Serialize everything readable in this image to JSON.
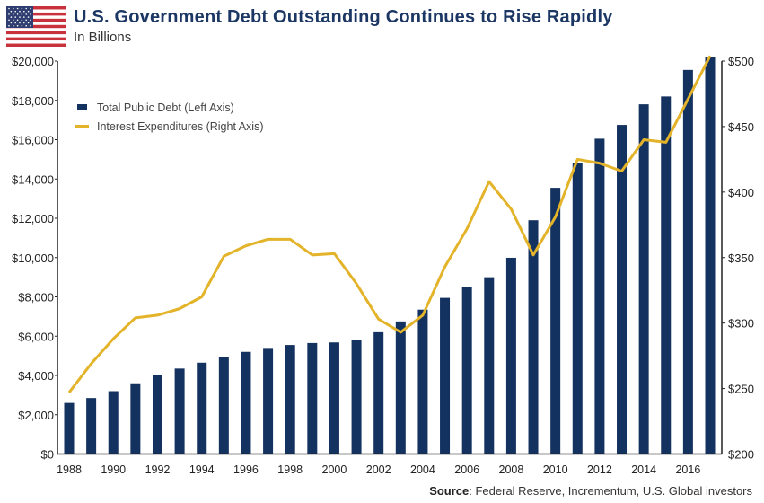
{
  "header": {
    "title": "U.S. Government Debt Outstanding Continues to Rise Rapidly",
    "subtitle": "In Billions",
    "icon": "us-flag-icon"
  },
  "source": {
    "label": "Source",
    "text": ": Federal Reserve, Incrementum, U.S. Global investors"
  },
  "chart_data": {
    "type": "bar+line",
    "title": "U.S. Government Debt Outstanding Continues to Rise Rapidly",
    "subtitle": "In Billions",
    "categories": [
      1988,
      1989,
      1990,
      1991,
      1992,
      1993,
      1994,
      1995,
      1996,
      1997,
      1998,
      1999,
      2000,
      2001,
      2002,
      2003,
      2004,
      2005,
      2006,
      2007,
      2008,
      2009,
      2010,
      2011,
      2012,
      2013,
      2014,
      2015,
      2016,
      2017
    ],
    "x_tick_labels": [
      "1988",
      "1990",
      "1992",
      "1994",
      "1996",
      "1998",
      "2000",
      "2002",
      "2004",
      "2006",
      "2008",
      "2010",
      "2012",
      "2014",
      "2016"
    ],
    "left_axis": {
      "range": [
        0,
        20000
      ],
      "tick_labels": [
        "$0",
        "$2,000",
        "$4,000",
        "$6,000",
        "$8,000",
        "$10,000",
        "$12,000",
        "$14,000",
        "$16,000",
        "$18,000",
        "$20,000"
      ]
    },
    "right_axis": {
      "range": [
        200,
        500
      ],
      "tick_labels": [
        "$200",
        "$250",
        "$300",
        "$350",
        "$400",
        "$450",
        "$500"
      ]
    },
    "grid": false,
    "legend_placement": "top-left",
    "series": [
      {
        "name": "Total Public Debt (Left Axis)",
        "type": "bar",
        "axis": "left",
        "color": "#14325f",
        "values": [
          2600,
          2850,
          3200,
          3600,
          4000,
          4350,
          4650,
          4950,
          5200,
          5400,
          5550,
          5650,
          5680,
          5800,
          6200,
          6750,
          7350,
          7950,
          8500,
          9000,
          9990,
          11900,
          13550,
          14800,
          16050,
          16750,
          17800,
          18200,
          19550,
          20200
        ]
      },
      {
        "name": "Interest Expenditures (Right Axis)",
        "type": "line",
        "axis": "right",
        "color": "#e3b32a",
        "values": [
          247,
          269,
          288,
          304,
          306,
          311,
          320,
          351,
          359,
          364,
          364,
          352,
          353,
          330,
          303,
          293,
          306,
          343,
          372,
          408,
          387,
          352,
          381,
          425,
          422,
          416,
          440,
          438,
          471,
          504
        ]
      }
    ]
  }
}
